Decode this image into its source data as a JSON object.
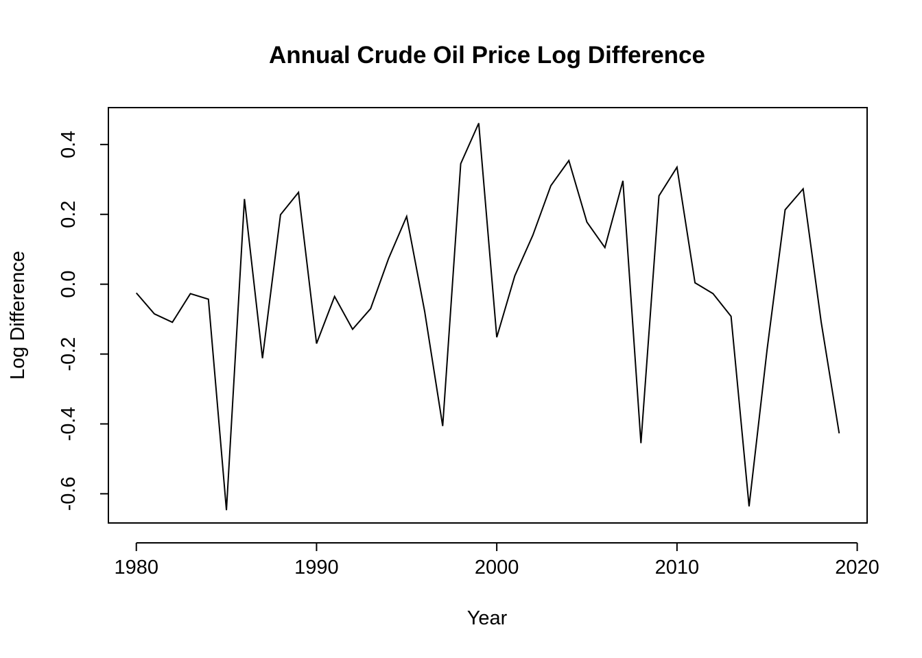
{
  "chart_data": {
    "type": "line",
    "title": "Annual Crude Oil Price Log Difference",
    "xlabel": "Year",
    "ylabel": "Log Difference",
    "xlim": [
      1978.45,
      2020.55
    ],
    "ylim": [
      -0.6836,
      0.5056
    ],
    "x_ticks": [
      1980,
      1990,
      2000,
      2010,
      2020
    ],
    "x_tick_labels": [
      "1980",
      "1990",
      "2000",
      "2010",
      "2020"
    ],
    "y_ticks": [
      -0.6,
      -0.4,
      -0.2,
      0.0,
      0.2,
      0.4
    ],
    "y_tick_labels": [
      "-0.6",
      "-0.4",
      "-0.2",
      "0.0",
      "0.2",
      "0.4"
    ],
    "grid": false,
    "legend": "none",
    "line_color": "#000000",
    "series": [
      {
        "x": [
          1980,
          1981,
          1982,
          1983,
          1984,
          1985,
          1986,
          1987,
          1988,
          1989,
          1990,
          1991,
          1992,
          1993,
          1994,
          1995,
          1996,
          1997,
          1998,
          1999,
          2000,
          2001,
          2002,
          2003,
          2004,
          2005,
          2006,
          2007,
          2008,
          2009,
          2010,
          2011,
          2012,
          2013,
          2014,
          2015,
          2016,
          2017,
          2018,
          2019
        ],
        "values": [
          -0.025,
          -0.085,
          -0.109,
          -0.027,
          -0.043,
          -0.647,
          0.244,
          -0.212,
          0.199,
          0.263,
          -0.17,
          -0.035,
          -0.129,
          -0.07,
          0.074,
          0.194,
          -0.078,
          -0.406,
          0.345,
          0.461,
          -0.152,
          0.024,
          0.14,
          0.282,
          0.354,
          0.178,
          0.105,
          0.296,
          -0.455,
          0.253,
          0.335,
          0.004,
          -0.027,
          -0.092,
          -0.636,
          -0.187,
          0.213,
          0.273,
          -0.108,
          -0.427
        ]
      }
    ]
  }
}
